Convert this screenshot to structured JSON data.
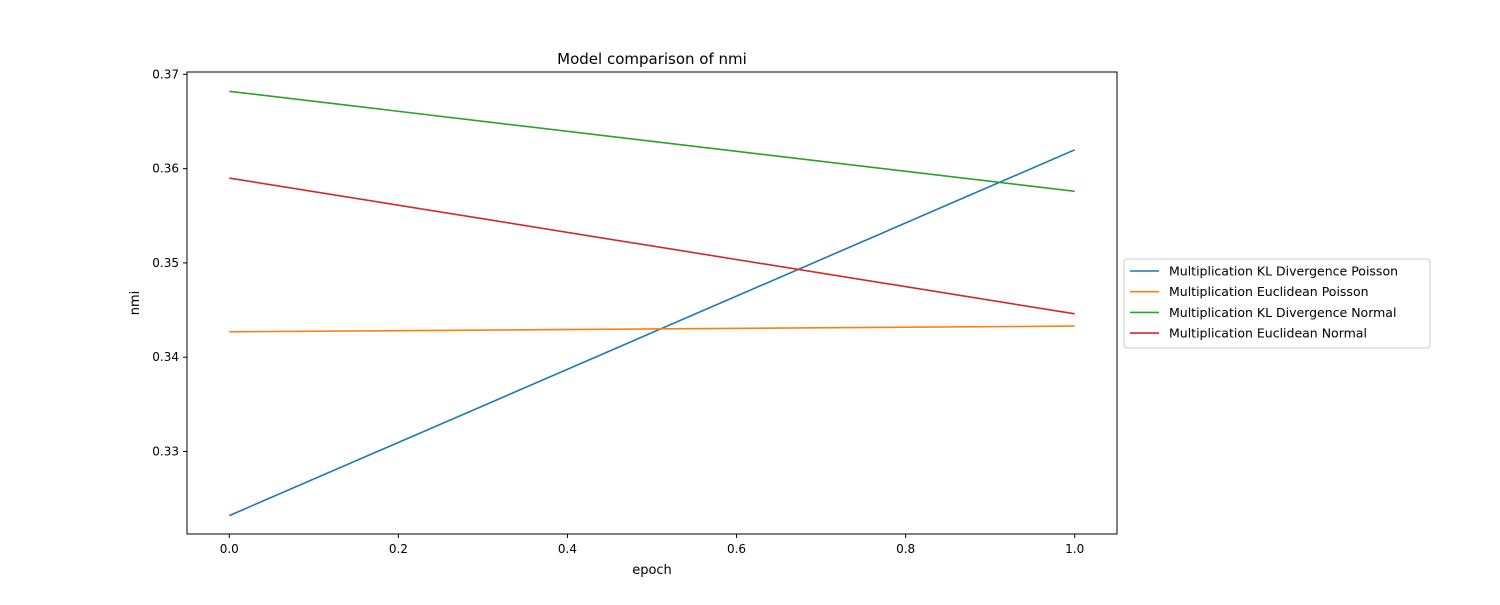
{
  "chart_data": {
    "type": "line",
    "title": "Model comparison of nmi",
    "xlabel": "epoch",
    "ylabel": "nmi",
    "xlim": [
      -0.05,
      1.05
    ],
    "ylim": [
      0.32125,
      0.37025
    ],
    "xticks": [
      0.0,
      0.2,
      0.4,
      0.6,
      0.8,
      1.0
    ],
    "xtick_labels": [
      "0.0",
      "0.2",
      "0.4",
      "0.6",
      "0.8",
      "1.0"
    ],
    "yticks": [
      0.33,
      0.34,
      0.35,
      0.36,
      0.37
    ],
    "ytick_labels": [
      "0.33",
      "0.34",
      "0.35",
      "0.36",
      "0.37"
    ],
    "grid": false,
    "legend_position": "outside-right",
    "x": [
      0,
      1
    ],
    "series": [
      {
        "name": "Multiplication KL Divergence Poisson",
        "color": "#1f77b4",
        "values": [
          0.3232,
          0.362
        ]
      },
      {
        "name": "Multiplication Euclidean Poisson",
        "color": "#ff7f0e",
        "values": [
          0.3427,
          0.3433
        ]
      },
      {
        "name": "Multiplication KL Divergence Normal",
        "color": "#2ca02c",
        "values": [
          0.3682,
          0.3576
        ]
      },
      {
        "name": "Multiplication Euclidean Normal",
        "color": "#d62728",
        "values": [
          0.359,
          0.3446
        ]
      }
    ]
  }
}
